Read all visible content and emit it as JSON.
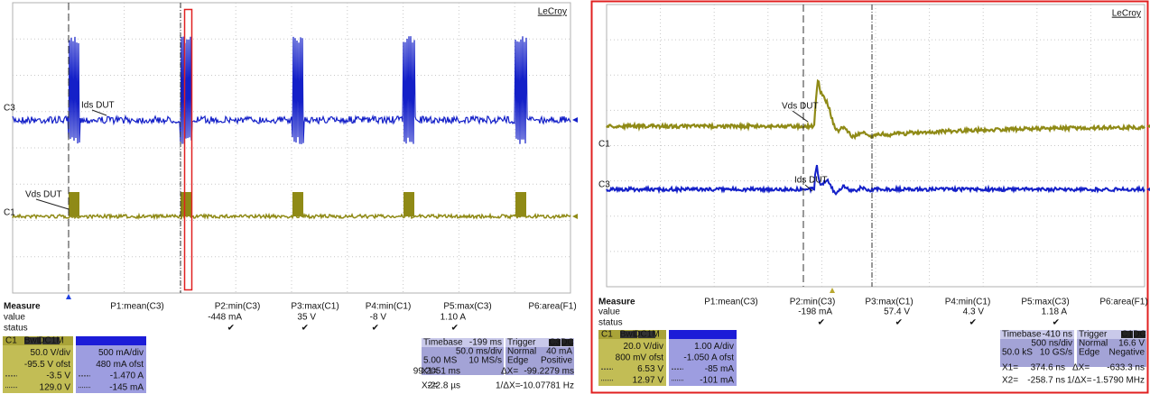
{
  "panels": [
    {
      "logo": "LeCroy",
      "traces": [
        {
          "channel": "C3",
          "label": "Ids DUT"
        },
        {
          "channel": "C1",
          "label": "Vds DUT"
        }
      ],
      "measure": {
        "title": "Measure",
        "row_labels": [
          "value",
          "status"
        ],
        "params": [
          {
            "name": "P1:mean(C3)"
          },
          {
            "name": "P2:min(C3)",
            "value": "-448 mA",
            "status": "✔"
          },
          {
            "name": "P3:max(C1)",
            "value": "35 V",
            "status": "✔"
          },
          {
            "name": "P4:min(C1)",
            "value": "-8 V",
            "status": "✔"
          },
          {
            "name": "P5:max(C3)",
            "value": "1.10 A",
            "status": "✔"
          },
          {
            "name": "P6:area(F1)"
          }
        ]
      },
      "channels": [
        {
          "name": "C1",
          "tags": [
            "BwL",
            "DC1M"
          ],
          "scale": "50.0 V/div",
          "offset": "-95.5 V ofst",
          "cursor1": "-3.5 V",
          "cursor2": "129.0 V"
        },
        {
          "scale": "500 mA/div",
          "offset": "480 mA ofst",
          "cursor1": "-1.470 A",
          "cursor2": "-145 mA"
        }
      ],
      "timebase": {
        "title": "Timebase",
        "delay": "-199 ms",
        "scale": "50.0 ms/div",
        "samples": "5.00 MS",
        "rate": "10 MS/s"
      },
      "trigger": {
        "title": "Trigger",
        "source": "C3",
        "coupling": "DC",
        "mode": "Normal",
        "level": "40 mA",
        "type": "Edge",
        "slope": "Positive"
      },
      "cursors": {
        "x1_label": "X1=",
        "x1": "99.2051 ms",
        "dx_label": "ΔX=",
        "dx": "-99.2279 ms",
        "x2_label": "X2=",
        "x2": "-22.8 µs",
        "inv_label": "1/ΔX=",
        "inv": "-10.07781 Hz"
      }
    },
    {
      "logo": "LeCroy",
      "traces": [
        {
          "channel": "C1",
          "label": "Vds DUT"
        },
        {
          "channel": "C3",
          "label": "Ids DUT"
        }
      ],
      "measure": {
        "title": "Measure",
        "row_labels": [
          "value",
          "status"
        ],
        "params": [
          {
            "name": "P1:mean(C3)"
          },
          {
            "name": "P2:min(C3)",
            "value": "-198 mA",
            "status": "✔"
          },
          {
            "name": "P3:max(C1)",
            "value": "57.4 V",
            "status": "✔"
          },
          {
            "name": "P4:min(C1)",
            "value": "4.3 V",
            "status": "✔"
          },
          {
            "name": "P5:max(C3)",
            "value": "1.18 A",
            "status": "✔"
          },
          {
            "name": "P6:area(F1)"
          }
        ]
      },
      "channels": [
        {
          "name": "C1",
          "tags": [
            "BwL",
            "DC1M"
          ],
          "scale": "20.0 V/div",
          "offset": "800 mV ofst",
          "cursor1": "6.53 V",
          "cursor2": "12.97 V"
        },
        {
          "scale": "1.00 A/div",
          "offset": "-1.050 A ofst",
          "cursor1": "-85 mA",
          "cursor2": "-101 mA"
        }
      ],
      "timebase": {
        "title": "Timebase",
        "delay": "-410 ns",
        "scale": "500 ns/div",
        "samples": "50.0 kS",
        "rate": "10 GS/s"
      },
      "trigger": {
        "title": "Trigger",
        "source": "C1",
        "coupling": "DC",
        "mode": "Normal",
        "level": "16.6 V",
        "type": "Edge",
        "slope": "Negative"
      },
      "cursors": {
        "x1_label": "X1=",
        "x1": "374.6 ns",
        "dx_label": "ΔX=",
        "dx": "-633.3 ns",
        "x2_label": "X2=",
        "x2": "-258.7 ns",
        "inv_label": "1/ΔX=",
        "inv": "-1.5790 MHz"
      }
    }
  ]
}
